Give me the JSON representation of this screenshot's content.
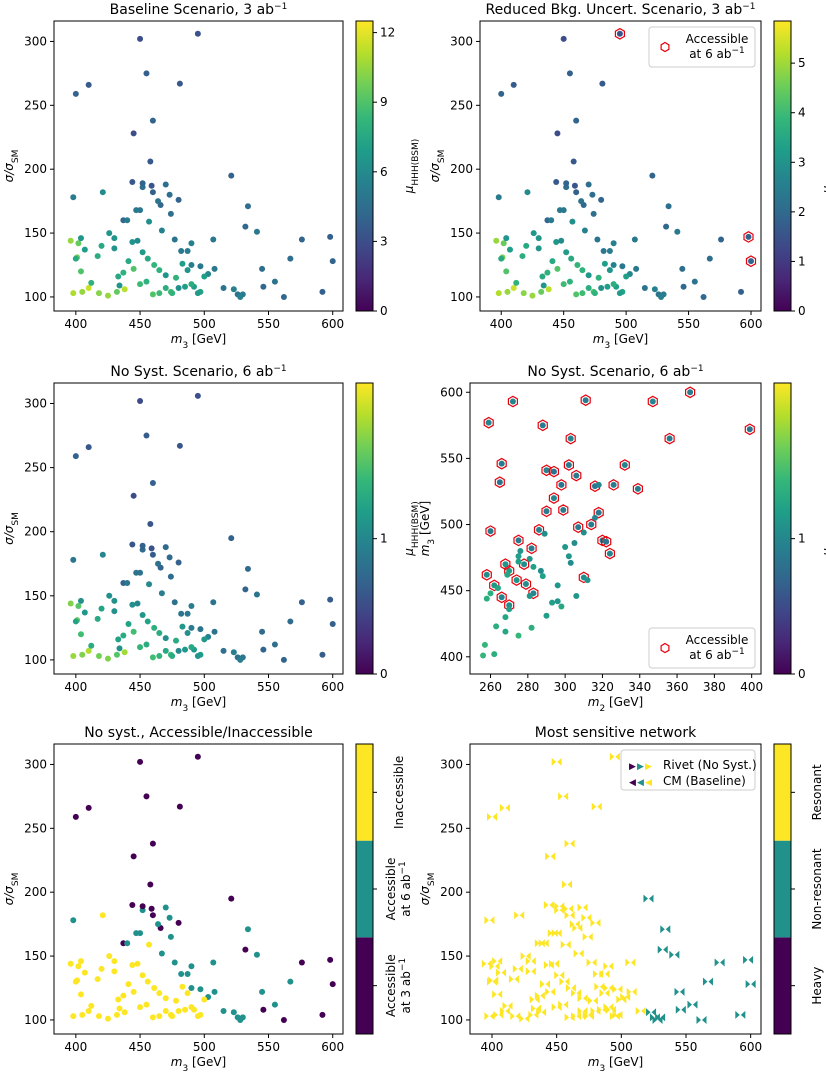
{
  "colors": {
    "viridis": [
      "#440154",
      "#482878",
      "#3e4989",
      "#31688e",
      "#26828e",
      "#1f9e89",
      "#35b779",
      "#6ece58",
      "#b5de2b",
      "#fde725"
    ],
    "accessible_ring": "#e8000b",
    "inaccessible": "#fde725",
    "accessible6": "#21918c",
    "accessible3": "#440154",
    "resonant": "#fde725",
    "nonresonant": "#21918c",
    "heavy": "#440154"
  },
  "chart_data": [
    {
      "id": "p1",
      "type": "scatter",
      "title": "Baseline Scenario, 3 ab",
      "title_sup": "−1",
      "xlabel": "m_3 [GeV]",
      "ylabel": "σ/σ_SM",
      "xlim": [
        383,
        608
      ],
      "ylim": [
        89,
        316
      ],
      "xticks": [
        400,
        450,
        500,
        550,
        600
      ],
      "yticks": [
        100,
        150,
        200,
        250,
        300
      ],
      "color_mode": "continuous",
      "colorbar": {
        "label": "μ_HHH(BSM)",
        "range": [
          0,
          12.5
        ],
        "ticks": [
          "0",
          "3",
          "6",
          "9",
          "12"
        ],
        "tick_values": [
          0,
          3,
          6,
          9,
          12
        ]
      },
      "points_x": [
        396,
        402,
        401,
        404,
        410,
        398,
        405,
        412,
        400,
        407,
        421,
        426,
        430,
        433,
        437,
        441,
        444,
        448,
        452,
        456,
        461,
        465,
        470,
        474,
        478,
        483,
        487,
        492,
        497,
        503,
        418,
        425,
        432,
        438,
        445,
        450,
        455,
        460,
        465,
        470,
        475,
        480,
        485,
        490,
        495,
        500,
        444,
        452,
        459,
        466,
        474,
        482,
        490,
        437,
        447,
        457,
        467,
        477,
        487,
        497,
        420,
        430,
        440,
        450,
        460,
        470,
        480,
        490,
        445,
        452,
        458,
        400,
        410,
        450,
        455,
        460,
        481,
        495,
        398,
        404,
        417,
        434,
        464,
        473,
        507,
        521,
        523,
        526,
        530,
        534,
        541,
        546,
        562,
        567,
        576,
        592,
        598,
        600,
        508,
        515,
        528,
        532,
        545,
        555
      ],
      "points_y": [
        144,
        142,
        131,
        120,
        107,
        103,
        104,
        111,
        130,
        137,
        182,
        150,
        146,
        116,
        119,
        128,
        143,
        144,
        135,
        130,
        125,
        121,
        107,
        104,
        115,
        126,
        121,
        108,
        104,
        118,
        103,
        101,
        104,
        106,
        122,
        110,
        112,
        102,
        103,
        117,
        103,
        107,
        108,
        110,
        103,
        116,
        190,
        186,
        187,
        172,
        165,
        136,
        125,
        160,
        168,
        159,
        152,
        145,
        136,
        124,
        140,
        138,
        160,
        168,
        182,
        188,
        176,
        142,
        228,
        189,
        206,
        259,
        266,
        302,
        275,
        238,
        267,
        306,
        178,
        146,
        132,
        109,
        175,
        180,
        145,
        195,
        106,
        102,
        102,
        171,
        151,
        108,
        100,
        130,
        145,
        104,
        147,
        128,
        122,
        107,
        100,
        155,
        122,
        112
      ],
      "points_v": [
        10.5,
        9.5,
        9.8,
        9.0,
        11.5,
        11.0,
        10.5,
        8.0,
        7.5,
        7.0,
        6.0,
        6.5,
        6.5,
        7.5,
        8.0,
        7.5,
        6.5,
        6.0,
        6.8,
        7.5,
        8.2,
        8.0,
        7.8,
        8.8,
        8.0,
        7.0,
        6.5,
        7.0,
        7.2,
        5.8,
        10.2,
        10.5,
        9.5,
        11.2,
        9.0,
        8.5,
        8.0,
        9.0,
        8.5,
        6.5,
        8.0,
        6.2,
        7.0,
        7.8,
        6.8,
        7.0,
        3.5,
        4.5,
        3.3,
        4.2,
        4.6,
        5.0,
        5.4,
        4.2,
        5.0,
        6.2,
        5.5,
        4.8,
        5.2,
        5.0,
        7.5,
        6.5,
        5.2,
        5.0,
        3.8,
        4.5,
        4.0,
        5.5,
        3.0,
        4.0,
        3.5,
        4.0,
        3.6,
        3.0,
        3.8,
        4.0,
        3.5,
        3.2,
        5.2,
        6.5,
        7.8,
        6.5,
        4.8,
        4.5,
        5.0,
        4.0,
        5.5,
        4.8,
        5.2,
        4.5,
        5.0,
        4.2,
        4.2,
        4.5,
        4.0,
        3.8,
        3.8,
        4.0,
        5.0,
        4.8,
        5.5,
        4.2,
        4.5,
        4.8
      ]
    },
    {
      "id": "p2",
      "type": "scatter",
      "title": "Reduced Bkg. Uncert. Scenario, 3 ab",
      "title_sup": "−1",
      "xlabel": "m_3 [GeV]",
      "ylabel": "σ/σ_SM",
      "xlim": [
        383,
        608
      ],
      "ylim": [
        89,
        316
      ],
      "xticks": [
        400,
        450,
        500,
        550,
        600
      ],
      "yticks": [
        100,
        150,
        200,
        250,
        300
      ],
      "color_mode": "continuous",
      "colorbar": {
        "label": "μ_HHH(BSM)",
        "range": [
          0,
          5.85
        ],
        "ticks": [
          "0",
          "1",
          "2",
          "3",
          "4",
          "5"
        ],
        "tick_values": [
          0,
          1,
          2,
          3,
          4,
          5
        ]
      },
      "legend": {
        "label_line1": "Accessible",
        "label_line2": "at 6 ab",
        "label_sup": "−1",
        "position": "top-right"
      },
      "ringed_indices": [
        77,
        96,
        97
      ],
      "value_scale": 0.47
    },
    {
      "id": "p3",
      "type": "scatter",
      "title": "No Syst. Scenario, 6 ab",
      "title_sup": "−1",
      "xlabel": "m_3 [GeV]",
      "ylabel": "σ/σ_SM",
      "xlim": [
        383,
        608
      ],
      "ylim": [
        89,
        316
      ],
      "xticks": [
        400,
        450,
        500,
        550,
        600
      ],
      "yticks": [
        100,
        150,
        200,
        250,
        300
      ],
      "color_mode": "continuous",
      "colorbar": {
        "label": "μ_HHH(BSM)",
        "range": [
          0,
          2.15
        ],
        "ticks": [
          "0",
          "1"
        ],
        "tick_values": [
          0,
          1
        ]
      },
      "value_scale": 0.165
    },
    {
      "id": "p4",
      "type": "scatter",
      "title": "No Syst. Scenario, 6 ab",
      "title_sup": "−1",
      "xlabel": "m_2 [GeV]",
      "ylabel": "m_3 [GeV]",
      "xlim": [
        249,
        405
      ],
      "ylim": [
        387,
        607
      ],
      "xticks": [
        260,
        280,
        300,
        320,
        340,
        360,
        380,
        400
      ],
      "yticks": [
        400,
        450,
        500,
        550,
        600
      ],
      "color_mode": "continuous",
      "colorbar": {
        "label": "μ_HHH(BSM)",
        "range": [
          0,
          2.15
        ],
        "ticks": [
          "0",
          "1"
        ],
        "tick_values": [
          0,
          1
        ]
      },
      "legend": {
        "label_line1": "Accessible",
        "label_line2": "at 6 ab",
        "label_sup": "−1",
        "position": "bottom-right"
      },
      "points_x": [
        259,
        260,
        266,
        265,
        270,
        272,
        268,
        275,
        279,
        283,
        288,
        290,
        294,
        299,
        303,
        307,
        311,
        316,
        320,
        324,
        258,
        262,
        266,
        270,
        274,
        278,
        282,
        286,
        290,
        294,
        298,
        302,
        306,
        310,
        314,
        318,
        322,
        326,
        332,
        339,
        347,
        356,
        367,
        399,
        256,
        262,
        268,
        275,
        281,
        287,
        293,
        300,
        305,
        312,
        318,
        258,
        264,
        270,
        276,
        283,
        289,
        296,
        302,
        310,
        316,
        257,
        263,
        269,
        275,
        281,
        288,
        296,
        303,
        260,
        268,
        275,
        282,
        290,
        298,
        306
      ],
      "points_y": [
        577,
        495,
        546,
        532,
        465,
        593,
        470,
        488,
        455,
        448,
        575,
        541,
        540,
        511,
        565,
        498,
        594,
        529,
        488,
        478,
        462,
        454,
        445,
        439,
        458,
        470,
        482,
        496,
        510,
        520,
        530,
        545,
        537,
        460,
        500,
        509,
        487,
        530,
        545,
        527,
        593,
        565,
        600,
        572,
        401,
        402,
        430,
        472,
        474,
        465,
        441,
        483,
        486,
        458,
        530,
        444,
        452,
        436,
        480,
        468,
        493,
        442,
        476,
        494,
        505,
        409,
        423,
        462,
        476,
        446,
        461,
        454,
        471,
        448,
        419,
        416,
        422,
        431,
        438,
        446
      ],
      "points_v": [
        1.3,
        1.2,
        1.2,
        1.1,
        1.6,
        1.3,
        1.5,
        1.2,
        1.4,
        1.3,
        1.2,
        1.3,
        1.1,
        1.2,
        1.3,
        1.2,
        1.2,
        1.1,
        1.2,
        1.3,
        1.4,
        1.5,
        1.3,
        1.4,
        1.5,
        1.4,
        1.2,
        1.3,
        1.2,
        1.3,
        1.1,
        1.2,
        1.2,
        1.4,
        1.2,
        1.2,
        1.1,
        1.2,
        1.3,
        1.2,
        1.3,
        1.2,
        1.2,
        1.1,
        1.9,
        1.8,
        1.7,
        1.6,
        1.5,
        1.4,
        1.6,
        1.5,
        1.4,
        1.5,
        1.3,
        1.8,
        1.7,
        1.6,
        1.5,
        1.6,
        1.4,
        1.5,
        1.5,
        1.4,
        1.3,
        1.9,
        1.8,
        1.7,
        1.6,
        1.5,
        1.6,
        1.5,
        1.4,
        1.8,
        1.7,
        1.9,
        1.8,
        1.6,
        1.7,
        1.5
      ],
      "ringed_count": 44
    },
    {
      "id": "p5",
      "type": "scatter",
      "title": "No syst., Accessible/Inaccessible",
      "xlabel": "m_3 [GeV]",
      "ylabel": "σ/σ_SM",
      "xlim": [
        383,
        608
      ],
      "ylim": [
        89,
        316
      ],
      "xticks": [
        400,
        450,
        500,
        550,
        600
      ],
      "yticks": [
        100,
        150,
        200,
        250,
        300
      ],
      "color_mode": "categorical",
      "colorbar": {
        "categories": [
          {
            "line1": "Accessible",
            "line2": "at 3 ab",
            "sup": "−1"
          },
          {
            "line1": "Accessible",
            "line2": "at 6 ab",
            "sup": "−1"
          },
          {
            "line1": "Inaccessible",
            "line2": "",
            "sup": ""
          }
        ]
      },
      "point_categories": "derived-from-value"
    },
    {
      "id": "p6",
      "type": "scatter",
      "title": "Most sensitive network",
      "xlabel": "m_3 [GeV]",
      "ylabel": "σ/σ_SM",
      "xlim": [
        383,
        608
      ],
      "ylim": [
        89,
        316
      ],
      "xticks": [
        400,
        450,
        500,
        550,
        600
      ],
      "yticks": [
        100,
        150,
        200,
        250,
        300
      ],
      "color_mode": "categorical",
      "colorbar": {
        "categories": [
          {
            "line1": "Heavy",
            "line2": "",
            "sup": ""
          },
          {
            "line1": "Non-resonant",
            "line2": "",
            "sup": ""
          },
          {
            "line1": "Resonant",
            "line2": "",
            "sup": ""
          }
        ]
      },
      "legend": {
        "entries": [
          "Rivet (No Syst.)",
          "CM (Baseline)"
        ],
        "position": "top-right"
      }
    }
  ]
}
